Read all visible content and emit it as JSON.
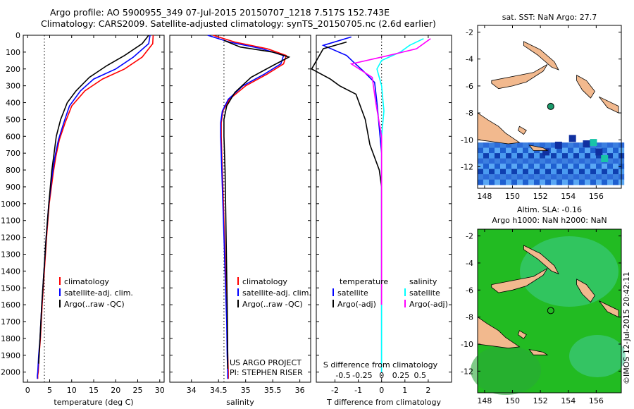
{
  "header": {
    "line1": "Argo profile: AO 5900955_349 07-Jul-2015 20150707_1218 7.517S 152.743E",
    "line2": "Climatology: CARS2009. Satellite-adjusted climatology: synTS_20150705.nc (2.6d earlier)"
  },
  "side_text": "©IMOS 12-Jul-2015 20:42:11",
  "colors": {
    "clim": "#ff0000",
    "sat": "#0000ff",
    "argo": "#000000",
    "sal_sat": "#00ffff",
    "sal_argo": "#ff00ff",
    "land": "#f2b98e",
    "sst_bg": "#ffffff",
    "sla_bg": "#22bb22"
  },
  "chart_data": [
    {
      "type": "line",
      "xlabel": "temperature (deg C)",
      "xlim": [
        -1,
        31
      ],
      "ylim": [
        2060,
        0
      ],
      "xticks": [
        0,
        5,
        10,
        15,
        20,
        25,
        30
      ],
      "yticks": [
        0,
        100,
        200,
        300,
        400,
        500,
        600,
        700,
        800,
        900,
        1000,
        1100,
        1200,
        1300,
        1400,
        1500,
        1600,
        1700,
        1800,
        1900,
        2000
      ],
      "reference_line_x": 3.8,
      "legend": {
        "items": [
          "climatology",
          "satellite-adj. clim.",
          "Argo(..raw -QC)"
        ],
        "placement": "lower-middle"
      },
      "series": [
        {
          "name": "climatology",
          "color": "#ff0000",
          "x": [
            28.5,
            28.4,
            26,
            22,
            17,
            13,
            10,
            8.5,
            7.2,
            6.4,
            5.8,
            4.9,
            4.3,
            3.8,
            3.3,
            2.9,
            2.6,
            2.4,
            2.3,
            2.3
          ],
          "y": [
            0,
            50,
            130,
            200,
            260,
            330,
            420,
            520,
            620,
            720,
            820,
            1000,
            1200,
            1400,
            1600,
            1800,
            1900,
            2000,
            2020,
            2040
          ]
        },
        {
          "name": "satellite-adj. clim.",
          "color": "#0000ff",
          "x": [
            27.8,
            27.5,
            24,
            20,
            15,
            12,
            9.5,
            8.2,
            7,
            6.2,
            5.6,
            4.8,
            4.2,
            3.7,
            3.2,
            2.8,
            2.5,
            2.3,
            2.2,
            2.2
          ],
          "y": [
            0,
            50,
            130,
            200,
            260,
            330,
            420,
            520,
            620,
            720,
            820,
            1000,
            1200,
            1400,
            1600,
            1800,
            1900,
            2000,
            2020,
            2040
          ]
        },
        {
          "name": "Argo(..raw -QC)",
          "color": "#000000",
          "x": [
            27.5,
            26,
            22,
            18,
            14,
            11,
            9,
            7.5,
            6.5,
            6,
            5.5,
            4.8,
            4.2,
            3.7,
            3.2,
            2.8,
            2.5
          ],
          "y": [
            0,
            50,
            120,
            180,
            250,
            330,
            400,
            500,
            600,
            700,
            800,
            1000,
            1200,
            1400,
            1600,
            1800,
            1950
          ]
        }
      ]
    },
    {
      "type": "line",
      "xlabel": "salinity",
      "xlim": [
        33.6,
        36.2
      ],
      "ylim": [
        2060,
        0
      ],
      "xticks": [
        34,
        34.5,
        35,
        35.5,
        36
      ],
      "xticklabels": [
        "34",
        "34.5",
        "35",
        "35.5",
        "36"
      ],
      "reference_line_x": 34.6,
      "legend": {
        "items": [
          "climatology",
          "satellite-adj. clim.",
          "Argo(..raw -QC)"
        ],
        "placement": "lower-right"
      },
      "footer": [
        "US ARGO PROJECT",
        "PI: STEPHEN RISER"
      ],
      "series": [
        {
          "name": "climatology",
          "color": "#ff0000",
          "x": [
            34.4,
            34.8,
            35.4,
            35.75,
            35.7,
            35.4,
            35.0,
            34.7,
            34.58,
            34.55,
            34.55,
            34.56,
            34.58,
            34.6,
            34.62,
            34.64,
            34.66,
            34.67,
            34.68,
            34.68
          ],
          "y": [
            0,
            40,
            80,
            120,
            170,
            230,
            300,
            380,
            450,
            520,
            600,
            700,
            900,
            1100,
            1300,
            1500,
            1700,
            1900,
            2000,
            2040
          ]
        },
        {
          "name": "satellite-adj. clim.",
          "color": "#0000ff",
          "x": [
            34.3,
            34.7,
            35.3,
            35.7,
            35.65,
            35.35,
            34.95,
            34.68,
            34.57,
            34.54,
            34.54,
            34.55,
            34.57,
            34.59,
            34.61,
            34.63,
            34.65,
            34.66,
            34.67,
            34.67
          ],
          "y": [
            0,
            40,
            80,
            120,
            170,
            230,
            300,
            380,
            450,
            520,
            600,
            700,
            900,
            1100,
            1300,
            1500,
            1700,
            1900,
            2000,
            2040
          ]
        },
        {
          "name": "Argo(..raw -QC)",
          "color": "#000000",
          "x": [
            34.6,
            34.9,
            35.5,
            35.8,
            35.5,
            35.1,
            34.8,
            34.65,
            34.6,
            34.6,
            34.62,
            34.64,
            34.66,
            34.67,
            34.67
          ],
          "y": [
            30,
            70,
            100,
            130,
            180,
            250,
            340,
            420,
            500,
            600,
            800,
            1200,
            1600,
            1900,
            1980
          ]
        }
      ]
    },
    {
      "type": "line",
      "xlabel": "T difference from climatology",
      "xlabel_top": "S difference from climatology",
      "xlim": [
        -2.8,
        3.0
      ],
      "ylim": [
        2060,
        0
      ],
      "xticks": [
        -2,
        -1,
        0,
        1,
        2
      ],
      "xticklabels": [
        "-2",
        "-1",
        "0",
        "1",
        "2"
      ],
      "xticks_top": [
        -0.5,
        -0.25,
        0,
        0.25,
        0.5
      ],
      "xticklabels_top": [
        "-0.5",
        "-0.25",
        "0",
        "0.25",
        "0.5"
      ],
      "reference_line_x": 0,
      "legend": {
        "items": [
          "temperature",
          "satellite",
          "Argo(-adj)",
          "salinity",
          "satellite",
          "Argo(-adj)"
        ],
        "placement": "lower-middle"
      },
      "series": [
        {
          "name": "satellite",
          "color": "#0000ff",
          "x": [
            -1.3,
            -2.5,
            -1.5,
            -1.2,
            -0.8,
            -0.3,
            -0.2,
            -0.1,
            0,
            0,
            0,
            0,
            0,
            0
          ],
          "y": [
            10,
            60,
            120,
            160,
            210,
            280,
            400,
            550,
            700,
            900,
            1200,
            1500,
            1800,
            2000
          ]
        },
        {
          "name": "Argo(-adj)",
          "color": "#000000",
          "x": [
            -1.5,
            -2.5,
            -3,
            -2.2,
            -1.8,
            -1.1,
            -0.7,
            -0.5,
            -0.1,
            0,
            0,
            0,
            0
          ],
          "y": [
            40,
            80,
            200,
            260,
            300,
            350,
            500,
            650,
            800,
            900,
            1100,
            1300,
            1600
          ]
        },
        {
          "name": "satellite",
          "color": "#00ffff",
          "x": [
            1.8,
            1.2,
            0.8,
            0,
            -0.2,
            0,
            0.1,
            0,
            0,
            0,
            0,
            0,
            0
          ],
          "y": [
            20,
            60,
            100,
            150,
            200,
            300,
            450,
            600,
            800,
            1000,
            1300,
            1600,
            2000
          ]
        },
        {
          "name": "Argo(-adj)",
          "color": "#ff00ff",
          "x": [
            2.1,
            1.5,
            0.3,
            -1.3,
            -0.4,
            -0.25,
            0,
            0,
            0,
            0
          ],
          "y": [
            20,
            80,
            120,
            170,
            250,
            400,
            600,
            900,
            1300,
            1600
          ]
        }
      ]
    },
    {
      "type": "heatmap",
      "title": "sat. SST: NaN Argo: 27.7",
      "xlim": [
        147.5,
        157.8
      ],
      "ylim": [
        -13.6,
        -1.5
      ],
      "xticks": [
        148,
        150,
        152,
        154,
        156
      ],
      "yticks": [
        -2,
        -4,
        -6,
        -8,
        -10,
        -12
      ],
      "marker": {
        "lon": 152.74,
        "lat": -7.52
      }
    },
    {
      "type": "heatmap",
      "title": "Altim. SLA: -0.16",
      "subtitle": "Argo h1000: NaN h2000: NaN",
      "xlim": [
        147.5,
        157.8
      ],
      "ylim": [
        -13.6,
        -1.5
      ],
      "xticks": [
        148,
        150,
        152,
        154,
        156
      ],
      "yticks": [
        -2,
        -4,
        -6,
        -8,
        -10,
        -12
      ],
      "marker": {
        "lon": 152.74,
        "lat": -7.52
      }
    }
  ]
}
